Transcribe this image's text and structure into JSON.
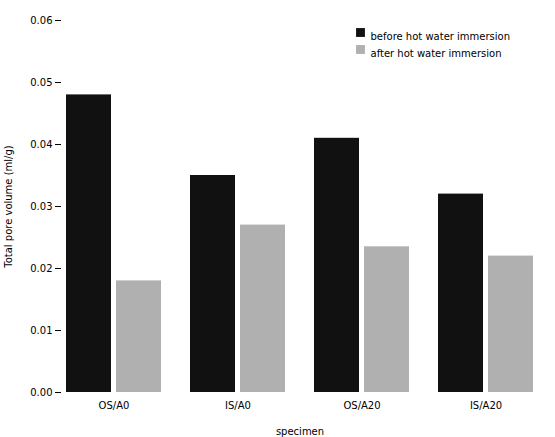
{
  "chart_data": {
    "type": "bar",
    "categories": [
      "OS/A0",
      "IS/A0",
      "OS/A20",
      "IS/A20"
    ],
    "series": [
      {
        "name": "before hot water immersion",
        "color": "#111111",
        "values": [
          0.048,
          0.035,
          0.041,
          0.032
        ]
      },
      {
        "name": "after hot water immersion",
        "color": "#b0b0b0",
        "values": [
          0.018,
          0.027,
          0.0235,
          0.022
        ]
      }
    ],
    "xlabel": "specimen",
    "ylabel": "Total pore volume (ml/g)",
    "ylim": [
      0.0,
      0.06
    ],
    "yticks": [
      {
        "value": 0.0,
        "label": "0.00"
      },
      {
        "value": 0.01,
        "label": "0.01"
      },
      {
        "value": 0.02,
        "label": "0.02"
      },
      {
        "value": 0.03,
        "label": "0.03"
      },
      {
        "value": 0.04,
        "label": "0.04"
      },
      {
        "value": 0.05,
        "label": "0.05"
      },
      {
        "value": 0.06,
        "label": "0.06"
      }
    ],
    "legend": "upper right",
    "grid": false
  }
}
